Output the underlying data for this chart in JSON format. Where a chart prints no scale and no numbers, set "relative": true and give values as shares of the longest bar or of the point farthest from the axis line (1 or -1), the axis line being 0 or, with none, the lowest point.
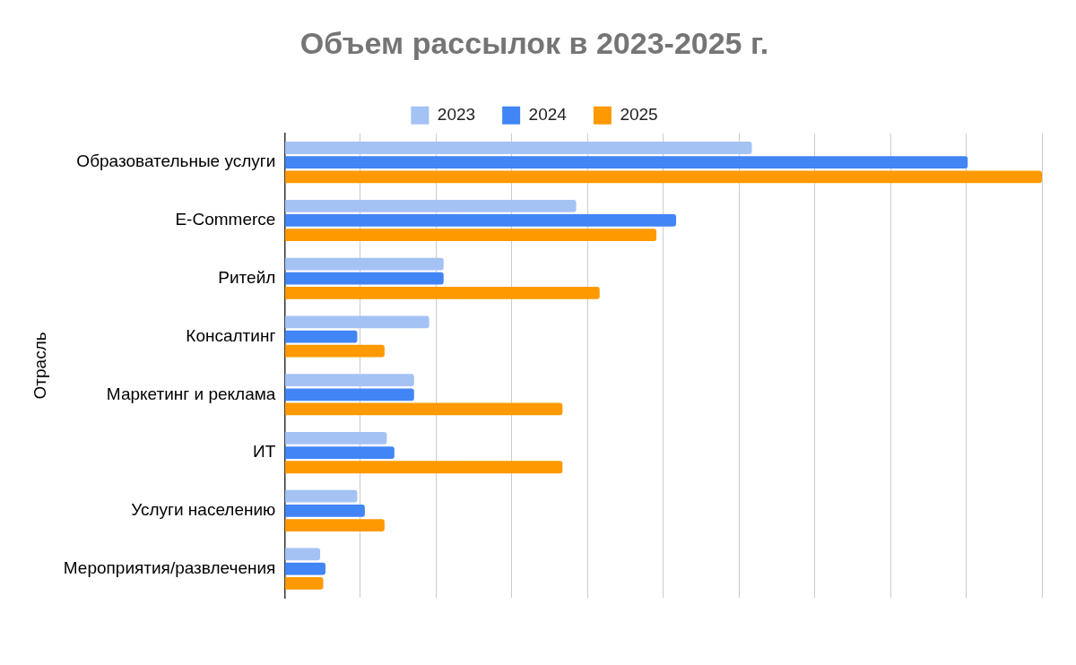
{
  "chart_data": {
    "type": "bar",
    "orientation": "horizontal",
    "relative": true,
    "title": "Объем рассылок в 2023-2025 г.",
    "ylabel": "Отрасль",
    "categories": [
      "Образовательные услуги",
      "E-Commerce",
      "Ритейл",
      "Консалтинг",
      "Маркетинг и реклама",
      "ИТ",
      "Услуги населению",
      "Мероприятия/развлечения"
    ],
    "series": [
      {
        "name": "2023",
        "color": "#a4c2f4",
        "values": [
          0.617,
          0.385,
          0.21,
          0.191,
          0.171,
          0.135,
          0.096,
          0.047
        ]
      },
      {
        "name": "2024",
        "color": "#4285f4",
        "values": [
          0.902,
          0.517,
          0.21,
          0.096,
          0.171,
          0.145,
          0.106,
          0.054
        ]
      },
      {
        "name": "2025",
        "color": "#ff9900",
        "values": [
          1,
          0.491,
          0.416,
          0.132,
          0.367,
          0.367,
          0.132,
          0.051
        ]
      }
    ],
    "grid": "x",
    "legend": "top"
  }
}
